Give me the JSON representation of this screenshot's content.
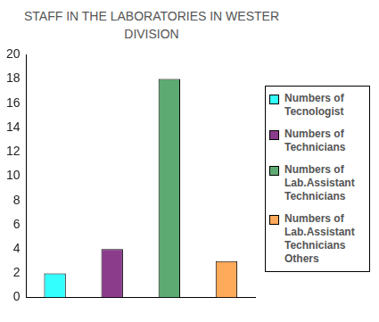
{
  "chart_data": {
    "type": "bar",
    "title": "STAFF IN THE LABORATORIES IN WESTER DIVISION",
    "categories": [
      null
    ],
    "series": [
      {
        "name": "Numbers of Tecnologist",
        "color": "#33ffff",
        "values": [
          2
        ]
      },
      {
        "name": "Numbers of Technicians",
        "color": "#8b3d8b",
        "values": [
          4
        ]
      },
      {
        "name": "Numbers of Lab.Assistant Technicians",
        "color": "#5daa73",
        "values": [
          18
        ]
      },
      {
        "name": "Numbers of Lab.Assistant Technicians Others",
        "color": "#ffa95a",
        "values": [
          3
        ]
      }
    ],
    "ylim": [
      0,
      20
    ],
    "yticks": [
      0,
      2,
      4,
      6,
      8,
      10,
      12,
      14,
      16,
      18,
      20
    ],
    "grid": false,
    "legend": "right"
  }
}
